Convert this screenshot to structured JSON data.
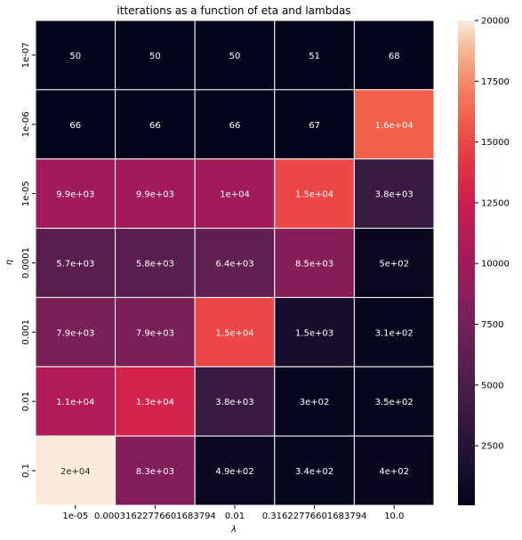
{
  "chart_data": {
    "type": "heatmap",
    "title": "itterations as a function of eta and lambdas",
    "xlabel": "λ",
    "ylabel": "η",
    "x_categories": [
      "1e-05",
      "0.00031622776601683794",
      "0.01",
      "0.31622776601683794",
      "10.0"
    ],
    "y_categories": [
      "1e-07",
      "1e-06",
      "1e-05",
      "0.0001",
      "0.001",
      "0.01",
      "0.1"
    ],
    "values": [
      [
        50,
        50,
        50,
        51,
        68
      ],
      [
        66,
        66,
        66,
        67,
        16000
      ],
      [
        9900,
        9900,
        10000,
        15000,
        3800
      ],
      [
        5700,
        5800,
        6400,
        8500,
        500
      ],
      [
        7900,
        7900,
        15000,
        1500,
        310
      ],
      [
        11000,
        13000,
        3800,
        300,
        350
      ],
      [
        20000,
        8300,
        490,
        340,
        400
      ]
    ],
    "annotations": [
      [
        "50",
        "50",
        "50",
        "51",
        "68"
      ],
      [
        "66",
        "66",
        "66",
        "67",
        "1.6e+04"
      ],
      [
        "9.9e+03",
        "9.9e+03",
        "1e+04",
        "1.5e+04",
        "3.8e+03"
      ],
      [
        "5.7e+03",
        "5.8e+03",
        "6.4e+03",
        "8.5e+03",
        "5e+02"
      ],
      [
        "7.9e+03",
        "7.9e+03",
        "1.5e+04",
        "1.5e+03",
        "3.1e+02"
      ],
      [
        "1.1e+04",
        "1.3e+04",
        "3.8e+03",
        "3e+02",
        "3.5e+02"
      ],
      [
        "2e+04",
        "8.3e+03",
        "4.9e+02",
        "3.4e+02",
        "4e+02"
      ]
    ],
    "colormap": "rocket",
    "vmin": 50,
    "vmax": 20000,
    "colorbar_ticks": [
      2500,
      5000,
      7500,
      10000,
      12500,
      15000,
      17500,
      20000
    ],
    "grid_line_color": "#ffffff"
  }
}
